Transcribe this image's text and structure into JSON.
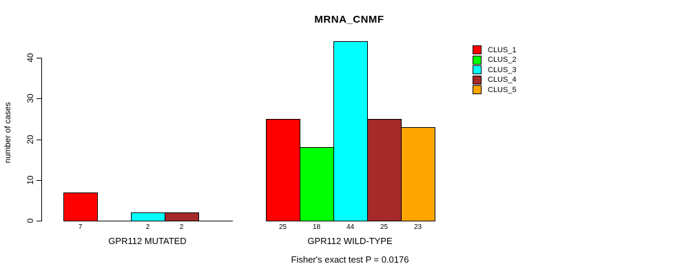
{
  "chart_data": {
    "type": "bar",
    "title": "MRNA_CNMF",
    "ylabel": "number of cases",
    "yticks": [
      0,
      10,
      20,
      30,
      40
    ],
    "ylim": [
      0,
      40
    ],
    "grid": false,
    "legend_position": "right",
    "categories": [
      "GPR112 MUTATED",
      "GPR112 WILD-TYPE"
    ],
    "series": [
      {
        "name": "CLUS_1",
        "color": "#FF0000",
        "values": [
          7,
          25
        ]
      },
      {
        "name": "CLUS_2",
        "color": "#00FF00",
        "values": [
          0,
          18
        ]
      },
      {
        "name": "CLUS_3",
        "color": "#00FFFF",
        "values": [
          2,
          44
        ]
      },
      {
        "name": "CLUS_4",
        "color": "#A52A2A",
        "values": [
          2,
          25
        ]
      },
      {
        "name": "CLUS_5",
        "color": "#FFA500",
        "values": [
          0,
          23
        ]
      }
    ],
    "bar_value_labels": {
      "GPR112 MUTATED": [
        7,
        null,
        2,
        2,
        null
      ],
      "GPR112 WILD-TYPE": [
        25,
        18,
        44,
        25,
        23
      ]
    },
    "zero_value_bars_hidden": true,
    "caption": "Fisher's exact test P = 0.0176"
  }
}
